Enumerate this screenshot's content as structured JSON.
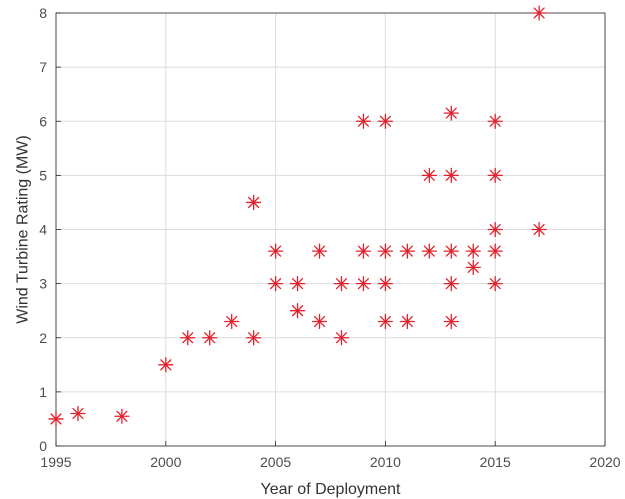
{
  "chart_data": {
    "type": "scatter",
    "title": "",
    "xlabel": "Year of Deployment",
    "ylabel": "Wind Turbine Rating (MW)",
    "xlim": [
      1995,
      2020
    ],
    "ylim": [
      0,
      8
    ],
    "xticks": [
      "1995",
      "2000",
      "2005",
      "2010",
      "2015",
      "2020"
    ],
    "yticks": [
      "0",
      "1",
      "2",
      "3",
      "4",
      "5",
      "6",
      "7",
      "8"
    ],
    "grid": true,
    "marker": "asterisk",
    "marker_color": "#e4202b",
    "points": [
      [
        1995,
        0.5
      ],
      [
        1996,
        0.6
      ],
      [
        1998,
        0.55
      ],
      [
        2000,
        1.5
      ],
      [
        2001,
        2.0
      ],
      [
        2002,
        2.0
      ],
      [
        2003,
        2.3
      ],
      [
        2004,
        2.0
      ],
      [
        2004,
        4.5
      ],
      [
        2005,
        3.0
      ],
      [
        2005,
        3.6
      ],
      [
        2006,
        2.5
      ],
      [
        2006,
        3.0
      ],
      [
        2007,
        2.3
      ],
      [
        2007,
        3.6
      ],
      [
        2008,
        2.0
      ],
      [
        2008,
        3.0
      ],
      [
        2009,
        3.0
      ],
      [
        2009,
        3.6
      ],
      [
        2009,
        6.0
      ],
      [
        2010,
        2.3
      ],
      [
        2010,
        3.0
      ],
      [
        2010,
        3.6
      ],
      [
        2010,
        6.0
      ],
      [
        2011,
        2.3
      ],
      [
        2011,
        3.6
      ],
      [
        2012,
        3.6
      ],
      [
        2012,
        5.0
      ],
      [
        2013,
        2.3
      ],
      [
        2013,
        3.0
      ],
      [
        2013,
        3.6
      ],
      [
        2013,
        5.0
      ],
      [
        2013,
        6.15
      ],
      [
        2014,
        3.3
      ],
      [
        2014,
        3.6
      ],
      [
        2015,
        3.0
      ],
      [
        2015,
        3.6
      ],
      [
        2015,
        4.0
      ],
      [
        2015,
        5.0
      ],
      [
        2015,
        6.0
      ],
      [
        2017,
        4.0
      ],
      [
        2017,
        8.0
      ]
    ]
  }
}
